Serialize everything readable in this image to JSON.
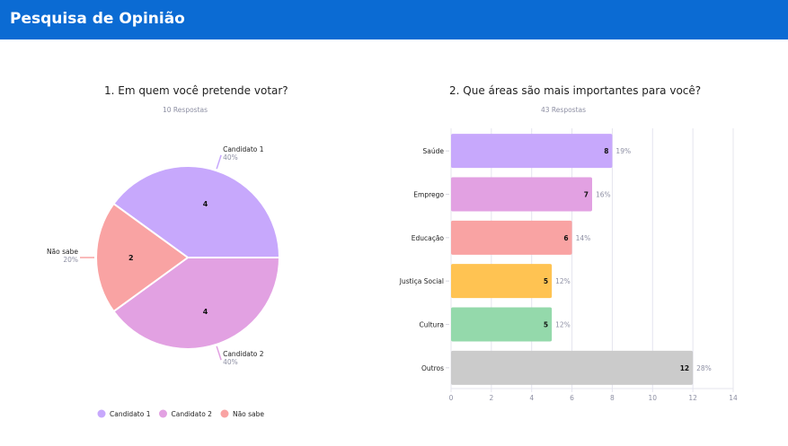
{
  "header": {
    "title": "Pesquisa de Opinião",
    "background": "#0b6bd3"
  },
  "chart_data": [
    {
      "type": "pie",
      "title": "1. Em quem você pretende votar?",
      "subtitle": "10 Respostas",
      "slices": [
        {
          "label": "Candidato 1",
          "value": 4,
          "percent": "40%",
          "color": "#c7a8fc"
        },
        {
          "label": "Candidato 2",
          "value": 4,
          "percent": "40%",
          "color": "#e2a1e2"
        },
        {
          "label": "Não sabe",
          "value": 2,
          "percent": "20%",
          "color": "#f9a3a3"
        }
      ],
      "legend": {
        "placement": "bottom",
        "entries": [
          "Candidato 1",
          "Candidato 2",
          "Não sabe"
        ]
      }
    },
    {
      "type": "bar",
      "orientation": "horizontal",
      "title": "2. Que áreas são mais importantes para você?",
      "subtitle": "43 Respostas",
      "categories": [
        "Saúde",
        "Emprego",
        "Educação",
        "Justiça Social",
        "Cultura",
        "Outros"
      ],
      "values": [
        8,
        7,
        6,
        5,
        5,
        12
      ],
      "percents": [
        "19%",
        "16%",
        "14%",
        "12%",
        "12%",
        "28%"
      ],
      "colors": [
        "#c7a8fc",
        "#e2a1e2",
        "#f9a3a3",
        "#ffc352",
        "#94d9ab",
        "#cbcbcb"
      ],
      "xlim": [
        0,
        14
      ],
      "xticks": [
        0,
        2,
        4,
        6,
        8,
        10,
        12,
        14
      ],
      "grid": true
    }
  ]
}
